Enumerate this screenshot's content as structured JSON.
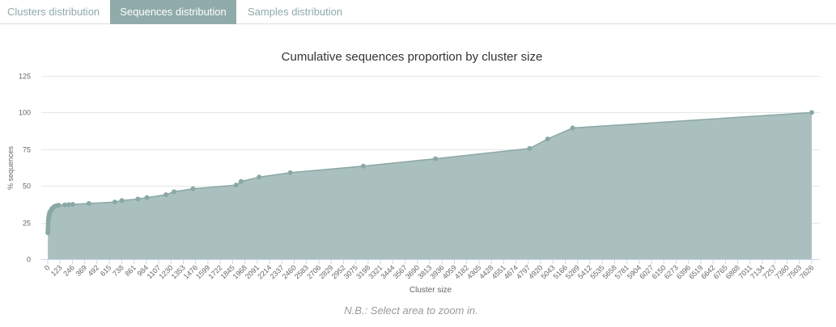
{
  "tabs": [
    {
      "label": "Clusters distribution",
      "active": false
    },
    {
      "label": "Sequences distribution",
      "active": true
    },
    {
      "label": "Samples distribution",
      "active": false
    }
  ],
  "colors": {
    "accent": "#90acaa",
    "area": "#a9c0bf",
    "line": "#8aa8a5",
    "grid": "#e6e6e6",
    "axis_text": "#666666"
  },
  "chart_data": {
    "type": "area",
    "title": "Cumulative sequences proportion by cluster size",
    "xlabel": "Cluster size",
    "ylabel": "% sequences",
    "ylim": [
      0,
      125
    ],
    "yticks": [
      0,
      25,
      50,
      75,
      100,
      125
    ],
    "xlim": [
      0,
      7626
    ],
    "xticks": [
      "0",
      "123",
      "246",
      "369",
      "492",
      "615",
      "738",
      "861",
      "984",
      "1107",
      "1230",
      "1353",
      "1476",
      "1599",
      "1722",
      "1845",
      "1968",
      "2091",
      "2214",
      "2337",
      "2460",
      "2583",
      "2706",
      "2829",
      "2952",
      "3075",
      "3198",
      "3321",
      "3444",
      "3567",
      "3690",
      "3813",
      "3936",
      "4059",
      "4182",
      "4305",
      "4428",
      "4551",
      "4674",
      "4797",
      "4920",
      "5043",
      "5166",
      "5289",
      "5412",
      "5535",
      "5658",
      "5781",
      "5904",
      "6027",
      "6150",
      "6273",
      "6396",
      "6519",
      "6642",
      "6765",
      "6888",
      "7011",
      "7134",
      "7257",
      "7380",
      "7503",
      "7626"
    ],
    "grid": true,
    "legend": "none",
    "x": [
      1,
      2,
      3,
      4,
      6,
      8,
      10,
      12,
      15,
      18,
      22,
      26,
      30,
      35,
      40,
      45,
      50,
      60,
      70,
      80,
      95,
      110,
      170,
      210,
      250,
      410,
      670,
      740,
      900,
      990,
      1180,
      1260,
      1450,
      1880,
      1930,
      2110,
      2420,
      3150,
      3870,
      4810,
      4990,
      5240,
      7626
    ],
    "y": [
      18,
      20,
      22,
      24,
      26,
      27.5,
      28.5,
      29.5,
      30.5,
      31.5,
      32,
      32.5,
      33,
      33.5,
      34,
      34.5,
      35,
      35.5,
      36,
      36.3,
      36.6,
      36.8,
      37,
      37.2,
      37.4,
      38,
      39,
      40,
      41,
      42,
      44,
      46,
      48,
      50.5,
      53,
      56,
      59,
      63.5,
      68.5,
      75.5,
      82,
      89.5,
      100
    ]
  },
  "note": "N.B.: Select area to zoom in."
}
